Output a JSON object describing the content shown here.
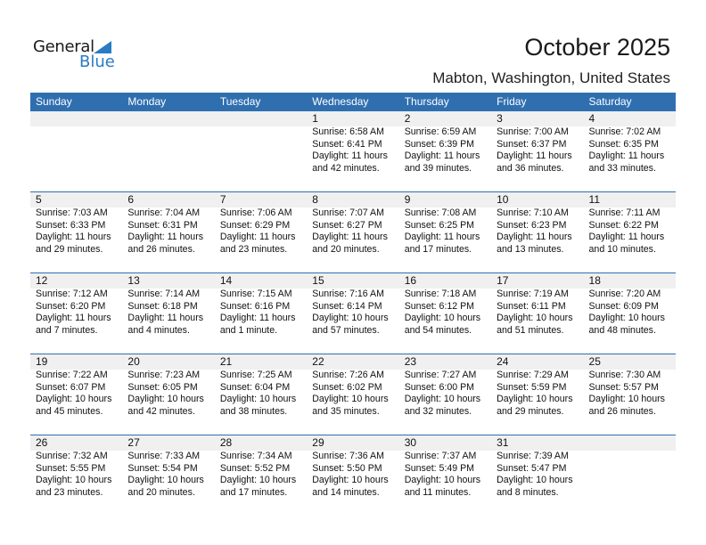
{
  "logo": {
    "general": "General",
    "blue": "Blue"
  },
  "header": {
    "title": "October 2025",
    "location": "Mabton, Washington, United States"
  },
  "weekdays": [
    "Sunday",
    "Monday",
    "Tuesday",
    "Wednesday",
    "Thursday",
    "Friday",
    "Saturday"
  ],
  "colors": {
    "header_bg": "#2f6fb0",
    "accent": "#2a7bc4",
    "date_band": "#f0f0f0"
  },
  "weeks": [
    [
      null,
      null,
      null,
      {
        "day": "1",
        "sunrise": "Sunrise: 6:58 AM",
        "sunset": "Sunset: 6:41 PM",
        "daylight": "Daylight: 11 hours",
        "minutes": "and 42 minutes."
      },
      {
        "day": "2",
        "sunrise": "Sunrise: 6:59 AM",
        "sunset": "Sunset: 6:39 PM",
        "daylight": "Daylight: 11 hours",
        "minutes": "and 39 minutes."
      },
      {
        "day": "3",
        "sunrise": "Sunrise: 7:00 AM",
        "sunset": "Sunset: 6:37 PM",
        "daylight": "Daylight: 11 hours",
        "minutes": "and 36 minutes."
      },
      {
        "day": "4",
        "sunrise": "Sunrise: 7:02 AM",
        "sunset": "Sunset: 6:35 PM",
        "daylight": "Daylight: 11 hours",
        "minutes": "and 33 minutes."
      }
    ],
    [
      {
        "day": "5",
        "sunrise": "Sunrise: 7:03 AM",
        "sunset": "Sunset: 6:33 PM",
        "daylight": "Daylight: 11 hours",
        "minutes": "and 29 minutes."
      },
      {
        "day": "6",
        "sunrise": "Sunrise: 7:04 AM",
        "sunset": "Sunset: 6:31 PM",
        "daylight": "Daylight: 11 hours",
        "minutes": "and 26 minutes."
      },
      {
        "day": "7",
        "sunrise": "Sunrise: 7:06 AM",
        "sunset": "Sunset: 6:29 PM",
        "daylight": "Daylight: 11 hours",
        "minutes": "and 23 minutes."
      },
      {
        "day": "8",
        "sunrise": "Sunrise: 7:07 AM",
        "sunset": "Sunset: 6:27 PM",
        "daylight": "Daylight: 11 hours",
        "minutes": "and 20 minutes."
      },
      {
        "day": "9",
        "sunrise": "Sunrise: 7:08 AM",
        "sunset": "Sunset: 6:25 PM",
        "daylight": "Daylight: 11 hours",
        "minutes": "and 17 minutes."
      },
      {
        "day": "10",
        "sunrise": "Sunrise: 7:10 AM",
        "sunset": "Sunset: 6:23 PM",
        "daylight": "Daylight: 11 hours",
        "minutes": "and 13 minutes."
      },
      {
        "day": "11",
        "sunrise": "Sunrise: 7:11 AM",
        "sunset": "Sunset: 6:22 PM",
        "daylight": "Daylight: 11 hours",
        "minutes": "and 10 minutes."
      }
    ],
    [
      {
        "day": "12",
        "sunrise": "Sunrise: 7:12 AM",
        "sunset": "Sunset: 6:20 PM",
        "daylight": "Daylight: 11 hours",
        "minutes": "and 7 minutes."
      },
      {
        "day": "13",
        "sunrise": "Sunrise: 7:14 AM",
        "sunset": "Sunset: 6:18 PM",
        "daylight": "Daylight: 11 hours",
        "minutes": "and 4 minutes."
      },
      {
        "day": "14",
        "sunrise": "Sunrise: 7:15 AM",
        "sunset": "Sunset: 6:16 PM",
        "daylight": "Daylight: 11 hours",
        "minutes": "and 1 minute."
      },
      {
        "day": "15",
        "sunrise": "Sunrise: 7:16 AM",
        "sunset": "Sunset: 6:14 PM",
        "daylight": "Daylight: 10 hours",
        "minutes": "and 57 minutes."
      },
      {
        "day": "16",
        "sunrise": "Sunrise: 7:18 AM",
        "sunset": "Sunset: 6:12 PM",
        "daylight": "Daylight: 10 hours",
        "minutes": "and 54 minutes."
      },
      {
        "day": "17",
        "sunrise": "Sunrise: 7:19 AM",
        "sunset": "Sunset: 6:11 PM",
        "daylight": "Daylight: 10 hours",
        "minutes": "and 51 minutes."
      },
      {
        "day": "18",
        "sunrise": "Sunrise: 7:20 AM",
        "sunset": "Sunset: 6:09 PM",
        "daylight": "Daylight: 10 hours",
        "minutes": "and 48 minutes."
      }
    ],
    [
      {
        "day": "19",
        "sunrise": "Sunrise: 7:22 AM",
        "sunset": "Sunset: 6:07 PM",
        "daylight": "Daylight: 10 hours",
        "minutes": "and 45 minutes."
      },
      {
        "day": "20",
        "sunrise": "Sunrise: 7:23 AM",
        "sunset": "Sunset: 6:05 PM",
        "daylight": "Daylight: 10 hours",
        "minutes": "and 42 minutes."
      },
      {
        "day": "21",
        "sunrise": "Sunrise: 7:25 AM",
        "sunset": "Sunset: 6:04 PM",
        "daylight": "Daylight: 10 hours",
        "minutes": "and 38 minutes."
      },
      {
        "day": "22",
        "sunrise": "Sunrise: 7:26 AM",
        "sunset": "Sunset: 6:02 PM",
        "daylight": "Daylight: 10 hours",
        "minutes": "and 35 minutes."
      },
      {
        "day": "23",
        "sunrise": "Sunrise: 7:27 AM",
        "sunset": "Sunset: 6:00 PM",
        "daylight": "Daylight: 10 hours",
        "minutes": "and 32 minutes."
      },
      {
        "day": "24",
        "sunrise": "Sunrise: 7:29 AM",
        "sunset": "Sunset: 5:59 PM",
        "daylight": "Daylight: 10 hours",
        "minutes": "and 29 minutes."
      },
      {
        "day": "25",
        "sunrise": "Sunrise: 7:30 AM",
        "sunset": "Sunset: 5:57 PM",
        "daylight": "Daylight: 10 hours",
        "minutes": "and 26 minutes."
      }
    ],
    [
      {
        "day": "26",
        "sunrise": "Sunrise: 7:32 AM",
        "sunset": "Sunset: 5:55 PM",
        "daylight": "Daylight: 10 hours",
        "minutes": "and 23 minutes."
      },
      {
        "day": "27",
        "sunrise": "Sunrise: 7:33 AM",
        "sunset": "Sunset: 5:54 PM",
        "daylight": "Daylight: 10 hours",
        "minutes": "and 20 minutes."
      },
      {
        "day": "28",
        "sunrise": "Sunrise: 7:34 AM",
        "sunset": "Sunset: 5:52 PM",
        "daylight": "Daylight: 10 hours",
        "minutes": "and 17 minutes."
      },
      {
        "day": "29",
        "sunrise": "Sunrise: 7:36 AM",
        "sunset": "Sunset: 5:50 PM",
        "daylight": "Daylight: 10 hours",
        "minutes": "and 14 minutes."
      },
      {
        "day": "30",
        "sunrise": "Sunrise: 7:37 AM",
        "sunset": "Sunset: 5:49 PM",
        "daylight": "Daylight: 10 hours",
        "minutes": "and 11 minutes."
      },
      {
        "day": "31",
        "sunrise": "Sunrise: 7:39 AM",
        "sunset": "Sunset: 5:47 PM",
        "daylight": "Daylight: 10 hours",
        "minutes": "and 8 minutes."
      },
      null
    ]
  ]
}
